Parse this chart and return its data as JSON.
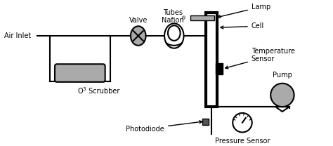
{
  "bg_color": "#ffffff",
  "line_color": "#000000",
  "gray_fill": "#aaaaaa",
  "dark_gray": "#555555",
  "labels": {
    "air_inlet": "Air Inlet",
    "valve": "Valve",
    "nafion": "Nafion",
    "nafion_r": "®",
    "tubes": "Tubes",
    "scrubber_o3": "O",
    "scrubber_3": "3",
    "scrubber_rest": " Scrubber",
    "lamp": "Lamp",
    "cell": "Cell",
    "temp_sensor": "Temperature\nSensor",
    "photodiode": "Photodiode",
    "pump": "Pump",
    "pressure": "Pressure Sensor"
  },
  "figsize": [
    4.74,
    2.08
  ],
  "dpi": 100
}
